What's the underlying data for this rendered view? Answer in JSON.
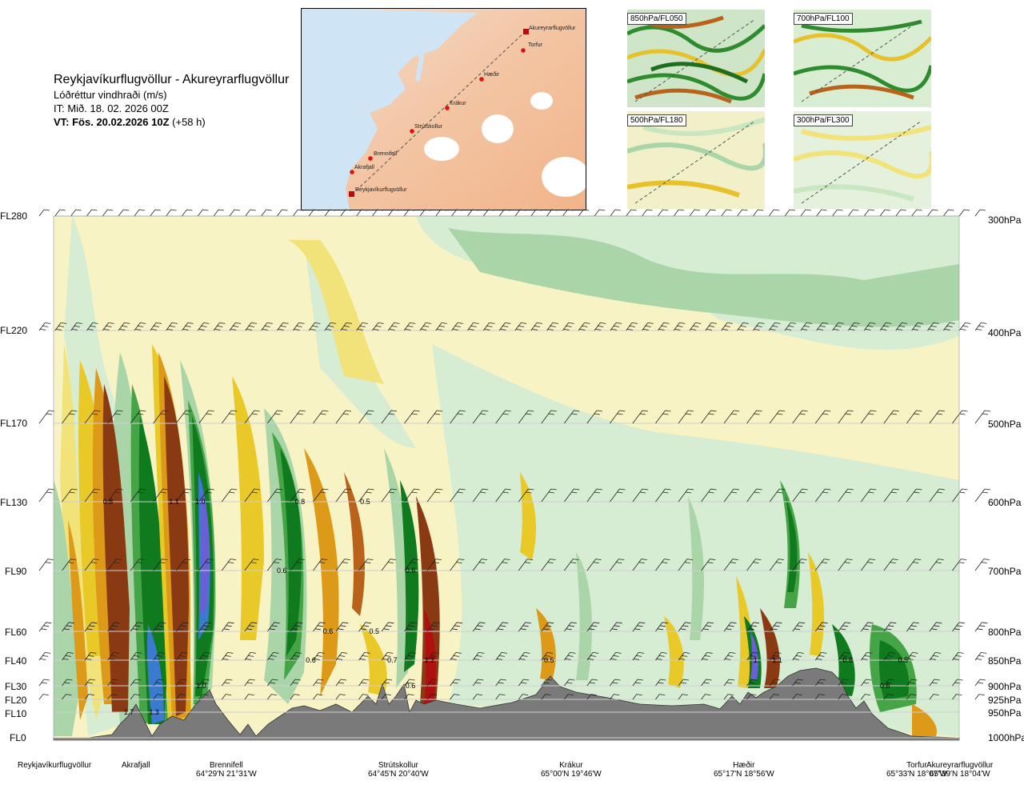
{
  "title": {
    "route": "Reykjavíkurflugvöllur - Akureyrarflugvöllur",
    "param": "Lóðréttur vindhraði (m/s)",
    "it": "IT: Mið. 18. 02. 2026 00Z",
    "vt_bold": "VT: Fös. 20.02.2026 10Z",
    "vt_lead": "(+58 h)"
  },
  "map": {
    "labels": [
      "Akureyrarflugvöllur",
      "Torfur",
      "Hæðir",
      "Krákur",
      "Strútskollur",
      "Brennifell",
      "Akrafjall",
      "Reykjavíkurflugvöllur"
    ]
  },
  "thumbs": [
    "850hPa/FL050",
    "700hPa/FL100",
    "500hPa/FL180",
    "300hPa/FL300"
  ],
  "levels": [
    {
      "fl": "FL280",
      "hpa": "300hPa"
    },
    {
      "fl": "FL220",
      "hpa": "400hPa"
    },
    {
      "fl": "FL170",
      "hpa": "500hPa"
    },
    {
      "fl": "FL130",
      "hpa": "600hPa"
    },
    {
      "fl": "FL90",
      "hpa": "700hPa"
    },
    {
      "fl": "FL60",
      "hpa": "800hPa"
    },
    {
      "fl": "FL40",
      "hpa": "850hPa"
    },
    {
      "fl": "FL30",
      "hpa": "900hPa"
    },
    {
      "fl": "FL20",
      "hpa": "925hPa"
    },
    {
      "fl": "FL10",
      "hpa": "950hPa"
    },
    {
      "fl": "FL0",
      "hpa": "1000hPa"
    }
  ],
  "stations": [
    {
      "name": "Reykjavíkurflugvöllur",
      "coord": ""
    },
    {
      "name": "Akrafjall",
      "coord": ""
    },
    {
      "name": "Brennifell",
      "coord": "64°29'N 21°31'W"
    },
    {
      "name": "Strútskollur",
      "coord": "64°45'N 20°40'W"
    },
    {
      "name": "Krákur",
      "coord": "65°00'N 19°46'W"
    },
    {
      "name": "Hæðir",
      "coord": "65°17'N 18°56'W"
    },
    {
      "name": "Torfur",
      "coord": "65°33'N 18°07'W"
    },
    {
      "name": "Akureyrarflugvöllur",
      "coord": "65°39'N 18°04'W"
    }
  ],
  "chart_data": {
    "type": "heatmap",
    "title": "Lóðréttur vindhraði (m/s)",
    "x_categories": [
      "Reykjavíkurflugvöllur",
      "Akrafjall",
      "Brennifell",
      "Strútskollur",
      "Krákur",
      "Hæðir",
      "Torfur",
      "Akureyrarflugvöllur"
    ],
    "y_levels_left": [
      "FL280",
      "FL220",
      "FL170",
      "FL130",
      "FL90",
      "FL60",
      "FL40",
      "FL30",
      "FL20",
      "FL10",
      "FL0"
    ],
    "y_levels_right": [
      "300hPa",
      "400hPa",
      "500hPa",
      "600hPa",
      "700hPa",
      "800hPa",
      "850hPa",
      "900hPa",
      "925hPa",
      "950hPa",
      "1000hPa"
    ],
    "colors": {
      "up_strong": "#6b5fd6",
      "up_high": "#3a7bd0",
      "up_mid": "#0f7a1e",
      "up_low": "#45a546",
      "up_weak": "#a9d5a8",
      "up_faint": "#d6ecd3",
      "neutral": "#f8f3c4",
      "down_faint": "#f2e27a",
      "down_weak": "#e9c928",
      "down_mid": "#dd9a18",
      "down_high": "#b8621a",
      "down_strong": "#8a3a12",
      "down_extreme": "#b01010",
      "terrain": "#7a7a7a"
    },
    "contour_labels": [
      {
        "text": "0.8",
        "station_frac": 0.06,
        "level": "FL130"
      },
      {
        "text": "1.1",
        "station_frac": 0.133,
        "level": "FL130"
      },
      {
        "text": "1.0",
        "station_frac": 0.162,
        "level": "FL130"
      },
      {
        "text": "0.8",
        "station_frac": 0.272,
        "level": "FL130"
      },
      {
        "text": "0.5",
        "station_frac": 0.344,
        "level": "FL130"
      },
      {
        "text": "0.6",
        "station_frac": 0.252,
        "level": "FL90"
      },
      {
        "text": "0.6",
        "station_frac": 0.394,
        "level": "FL90"
      },
      {
        "text": "0.6",
        "station_frac": 0.303,
        "level": "FL60"
      },
      {
        "text": "0.5",
        "station_frac": 0.354,
        "level": "FL60"
      },
      {
        "text": "0.6",
        "station_frac": 0.284,
        "level": "FL40"
      },
      {
        "text": "0.7",
        "station_frac": 0.374,
        "level": "FL40"
      },
      {
        "text": "1.2",
        "station_frac": 0.415,
        "level": "FL40"
      },
      {
        "text": "0.5",
        "station_frac": 0.547,
        "level": "FL40"
      },
      {
        "text": "1.",
        "station_frac": 0.776,
        "level": "FL40"
      },
      {
        "text": "1.1",
        "station_frac": 0.799,
        "level": "FL40"
      },
      {
        "text": "0.6",
        "station_frac": 0.877,
        "level": "FL40"
      },
      {
        "text": "0.5",
        "station_frac": 0.938,
        "level": "FL40"
      },
      {
        "text": "1.0",
        "station_frac": 0.163,
        "level": "FL30"
      },
      {
        "text": "0.6",
        "station_frac": 0.394,
        "level": "FL30"
      },
      {
        "text": "0.6",
        "station_frac": 0.918,
        "level": "FL30"
      },
      {
        "text": "1.7",
        "station_frac": 0.083,
        "level": "FL10"
      },
      {
        "text": "1.3",
        "station_frac": 0.111,
        "level": "FL10"
      }
    ]
  }
}
